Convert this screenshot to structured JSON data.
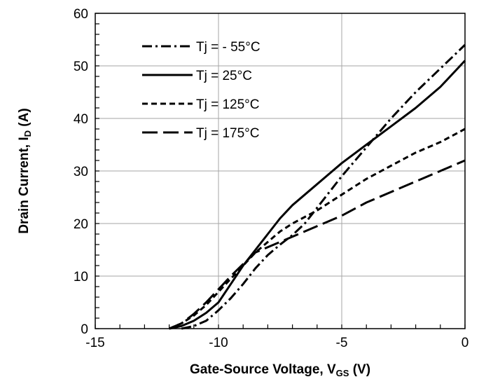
{
  "chart_data": {
    "type": "line",
    "xlabel_main": "Gate-Source Voltage, V",
    "xlabel_sub": "GS",
    "xlabel_unit": " (V)",
    "ylabel_main": "Drain Current, I",
    "ylabel_sub": "D",
    "ylabel_unit": " (A)",
    "xlim": [
      -15,
      0
    ],
    "ylim": [
      0,
      60
    ],
    "xticks": [
      -15,
      -10,
      -5,
      0
    ],
    "yticks": [
      0,
      10,
      20,
      30,
      40,
      50,
      60
    ],
    "grid": true,
    "legend_position": "top-left",
    "series": [
      {
        "name": "Tj = - 55°C",
        "dash": "dashdot",
        "x": [
          -11.5,
          -11.0,
          -10.5,
          -10.0,
          -9.5,
          -9.0,
          -8.5,
          -8.0,
          -7.5,
          -7.0,
          -6.5,
          -6.0,
          -5.5,
          -5.0,
          -4.0,
          -3.0,
          -2.0,
          -1.0,
          0.0
        ],
        "y": [
          0,
          0.5,
          1.5,
          3.5,
          5.8,
          8.5,
          11.5,
          14.0,
          16.0,
          17.8,
          20.0,
          23.0,
          26.0,
          29.0,
          34.5,
          40.0,
          45.0,
          49.5,
          54.0
        ]
      },
      {
        "name": "Tj = 25°C",
        "dash": "solid",
        "x": [
          -12.0,
          -11.5,
          -11.0,
          -10.5,
          -10.0,
          -9.5,
          -9.0,
          -8.5,
          -8.0,
          -7.5,
          -7.0,
          -6.0,
          -5.0,
          -4.0,
          -3.0,
          -2.0,
          -1.0,
          0.0
        ],
        "y": [
          0,
          0.5,
          1.5,
          3.0,
          5.0,
          8.5,
          12.0,
          15.0,
          18.0,
          21.0,
          23.5,
          27.5,
          31.5,
          35.0,
          38.5,
          42.0,
          46.0,
          51.0
        ]
      },
      {
        "name": "Tj = 125°C",
        "dash": "dashed",
        "x": [
          -12.0,
          -11.5,
          -11.0,
          -10.5,
          -10.0,
          -9.5,
          -9.0,
          -8.5,
          -8.0,
          -7.5,
          -7.0,
          -6.0,
          -5.0,
          -4.0,
          -3.0,
          -2.0,
          -1.0,
          0.0
        ],
        "y": [
          0,
          1.0,
          2.5,
          4.5,
          7.0,
          9.5,
          12.0,
          14.5,
          16.5,
          18.5,
          20.0,
          22.5,
          25.5,
          28.5,
          31.0,
          33.5,
          35.5,
          38.0
        ]
      },
      {
        "name": "Tj = 175°C",
        "dash": "longdash",
        "x": [
          -12.0,
          -11.5,
          -11.0,
          -10.5,
          -10.0,
          -9.5,
          -9.0,
          -8.5,
          -8.0,
          -7.5,
          -7.0,
          -6.5,
          -6.0,
          -5.0,
          -4.0,
          -3.0,
          -2.0,
          -1.0,
          0.0
        ],
        "y": [
          0,
          1.0,
          2.8,
          5.0,
          7.5,
          10.0,
          12.3,
          14.5,
          15.5,
          16.5,
          17.5,
          18.5,
          19.5,
          21.5,
          24.0,
          26.0,
          28.0,
          30.0,
          32.0
        ]
      }
    ]
  }
}
